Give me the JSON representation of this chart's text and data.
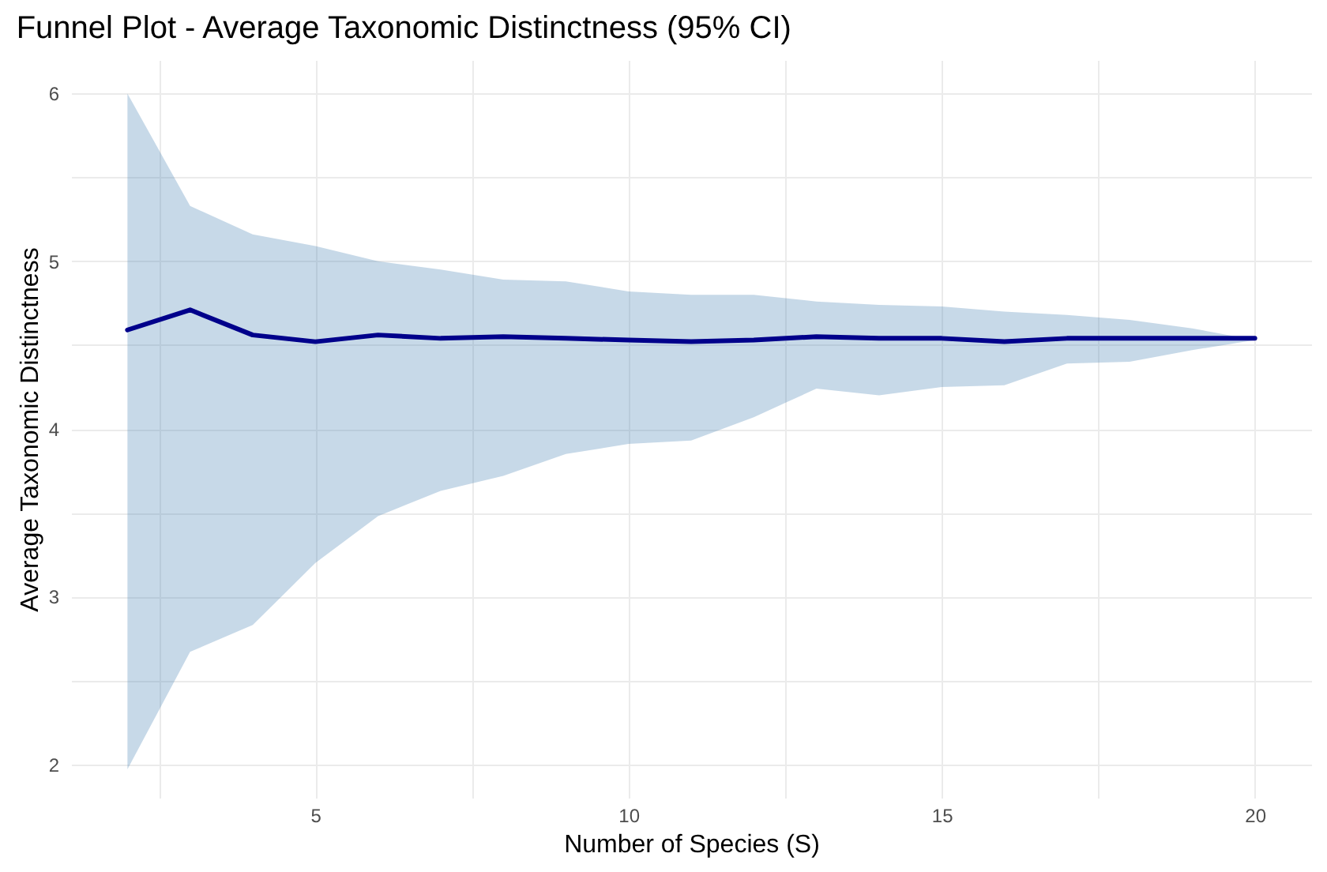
{
  "chart_data": {
    "type": "line",
    "title": "Funnel Plot - Average Taxonomic Distinctness (95% CI)",
    "xlabel": "Number of Species (S)",
    "ylabel": "Average Taxonomic Distinctness",
    "x": [
      2,
      3,
      4,
      5,
      6,
      7,
      8,
      9,
      10,
      11,
      12,
      13,
      14,
      15,
      16,
      17,
      18,
      19,
      20
    ],
    "series": [
      {
        "color": "#00008b",
        "values": [
          4.59,
          4.71,
          4.56,
          4.52,
          4.56,
          4.54,
          4.55,
          4.54,
          4.53,
          4.52,
          4.53,
          4.55,
          4.54,
          4.54,
          4.52,
          4.54,
          4.54,
          4.54,
          4.54
        ],
        "lower": [
          1.97,
          2.67,
          2.83,
          3.2,
          3.48,
          3.63,
          3.72,
          3.85,
          3.91,
          3.93,
          4.07,
          4.24,
          4.2,
          4.25,
          4.26,
          4.39,
          4.4,
          4.47,
          4.53
        ],
        "upper": [
          6.0,
          5.33,
          5.16,
          5.09,
          5.0,
          4.95,
          4.89,
          4.88,
          4.82,
          4.8,
          4.8,
          4.76,
          4.74,
          4.73,
          4.7,
          4.68,
          4.65,
          4.6,
          4.53
        ]
      }
    ],
    "xlim": [
      1.1,
      20.9
    ],
    "ylim": [
      1.8,
      6.2
    ],
    "xticks": [
      {
        "value": 2.5,
        "label": null
      },
      5,
      {
        "value": 7.5,
        "label": null
      },
      10,
      {
        "value": 12.5,
        "label": null
      },
      15,
      {
        "value": 17.5,
        "label": null
      },
      20
    ],
    "yticks": [
      2,
      {
        "value": 2.5,
        "label": null
      },
      3,
      {
        "value": 3.5,
        "label": null
      },
      4,
      {
        "value": 4.5,
        "label": null
      },
      5,
      {
        "value": 5.5,
        "label": null
      },
      6
    ],
    "grid": true,
    "line_style": "solid",
    "marker": "none"
  }
}
